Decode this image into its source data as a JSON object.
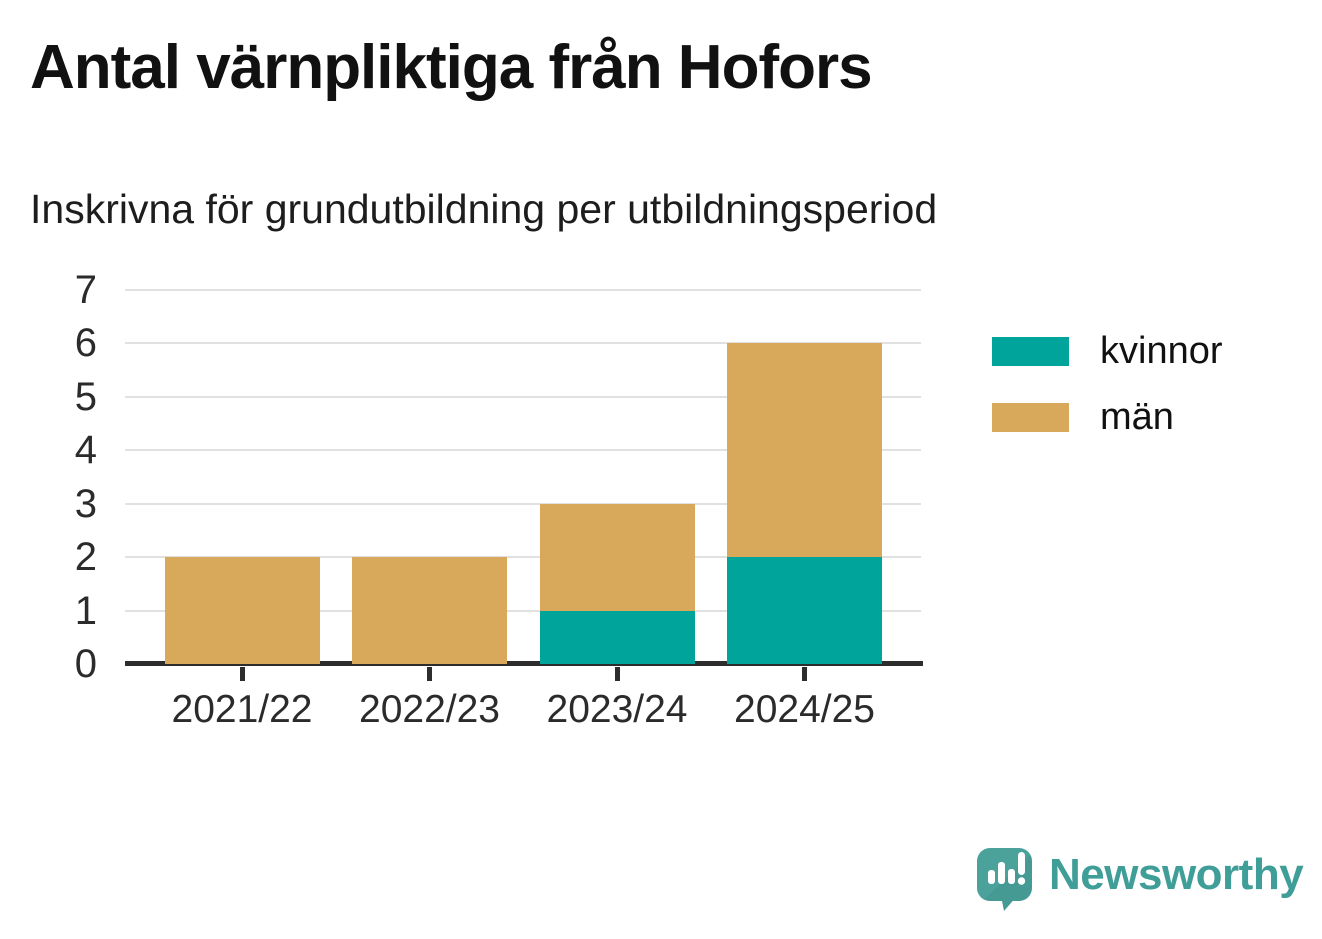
{
  "chart_data": {
    "type": "bar",
    "stacked": true,
    "title": "Antal värnpliktiga från Hofors",
    "subtitle": "Inskrivna för grundutbildning per utbildningsperiod",
    "categories": [
      "2021/22",
      "2022/23",
      "2023/24",
      "2024/25"
    ],
    "series": [
      {
        "name": "kvinnor",
        "color": "#00a49a",
        "values": [
          0,
          0,
          1,
          2
        ]
      },
      {
        "name": "män",
        "color": "#d8a95a",
        "values": [
          2,
          2,
          2,
          4
        ]
      }
    ],
    "stacked_totals": [
      2,
      2,
      3,
      6
    ],
    "xlabel": "",
    "ylabel": "",
    "ylim": [
      0,
      7
    ],
    "yticks": [
      0,
      1,
      2,
      3,
      4,
      5,
      6,
      7
    ],
    "grid": "horizontal",
    "legend_position": "right",
    "colors": {
      "axis": "#2d2d2d",
      "grid": "#e1e1e1",
      "tick_text": "#2b2b2b"
    }
  },
  "footer": {
    "brand": "Newsworthy",
    "brand_text_color": "#3f9e97",
    "logo_color": "#4ba29b"
  }
}
